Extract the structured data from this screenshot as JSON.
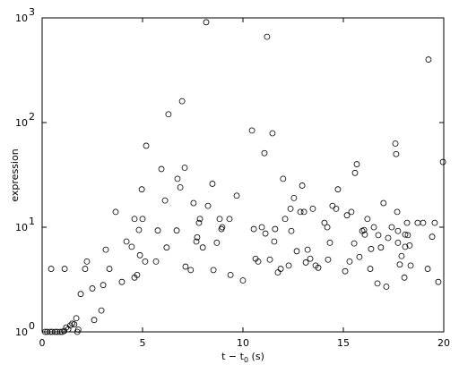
{
  "chart_data": {
    "type": "scatter",
    "x_label": {
      "text": "t − t",
      "sub": "0",
      "suffix": " (s)"
    },
    "y_label": "expression",
    "log_y": true,
    "color": "#000000",
    "xlim": [
      0,
      20
    ],
    "xticks": [
      0,
      5,
      10,
      15,
      20
    ],
    "ylim": [
      1,
      1000
    ],
    "yticks": [
      {
        "value": 1,
        "label": "10",
        "sup": "0"
      },
      {
        "value": 10,
        "label": "10",
        "sup": "1"
      },
      {
        "value": 100,
        "label": "10",
        "sup": "2"
      },
      {
        "value": 1000,
        "label": "10",
        "sup": "3"
      }
    ],
    "x": [
      0.45,
      1.12,
      0.15,
      0.25,
      0.4,
      0.5,
      0.65,
      0.75,
      0.9,
      1.0,
      1.1,
      1.2,
      1.3,
      1.4,
      1.5,
      1.6,
      1.7,
      1.8,
      1.75,
      1.92,
      2.14,
      2.23,
      2.5,
      2.59,
      2.95,
      3.04,
      3.17,
      3.35,
      3.66,
      3.97,
      4.2,
      4.46,
      4.6,
      4.6,
      4.73,
      4.82,
      4.87,
      5.0,
      4.96,
      5.13,
      5.18,
      5.67,
      5.76,
      5.94,
      6.12,
      6.2,
      6.29,
      6.7,
      6.74,
      6.88,
      6.97,
      7.1,
      7.14,
      7.4,
      7.54,
      7.68,
      7.72,
      7.81,
      7.86,
      8.0,
      8.17,
      8.26,
      8.48,
      8.53,
      8.7,
      8.84,
      8.93,
      8.97,
      9.33,
      9.38,
      9.69,
      10.0,
      10.45,
      10.54,
      10.63,
      10.76,
      10.94,
      11.07,
      11.12,
      11.2,
      11.34,
      11.47,
      11.56,
      11.6,
      11.74,
      11.88,
      12.0,
      12.1,
      12.28,
      12.37,
      12.41,
      12.54,
      12.68,
      12.86,
      12.95,
      13.04,
      13.13,
      13.22,
      13.35,
      13.48,
      13.62,
      13.75,
      14.06,
      14.2,
      14.24,
      14.33,
      14.46,
      14.64,
      14.73,
      15.09,
      15.18,
      15.31,
      15.4,
      15.54,
      15.58,
      15.67,
      15.8,
      15.94,
      16.03,
      16.07,
      16.2,
      16.34,
      16.38,
      16.52,
      16.7,
      16.74,
      16.87,
      17.0,
      17.14,
      17.23,
      17.41,
      17.59,
      17.63,
      17.68,
      17.72,
      17.72,
      17.81,
      17.9,
      18.08,
      18.04,
      18.08,
      18.17,
      18.21,
      18.3,
      18.35,
      18.7,
      18.97,
      19.2,
      19.24,
      19.42,
      19.55,
      19.73,
      19.96
    ],
    "values": [
      4.0,
      4.0,
      1.0,
      1.0,
      1.0,
      1.0,
      1.0,
      1.0,
      1.0,
      1.0,
      1.02,
      1.1,
      1.06,
      1.15,
      1.2,
      1.18,
      1.35,
      1.05,
      1.0,
      2.3,
      4.0,
      4.7,
      2.6,
      1.3,
      1.6,
      2.8,
      6.1,
      4.0,
      14,
      3.0,
      7.3,
      6.5,
      12,
      3.3,
      3.5,
      9.4,
      5.4,
      12,
      23,
      4.7,
      60,
      4.7,
      9.3,
      36,
      18,
      6.4,
      120,
      9.3,
      29,
      24,
      160,
      37,
      4.2,
      3.9,
      17,
      7.3,
      8.0,
      11,
      12,
      6.4,
      910,
      16,
      26,
      3.9,
      7.1,
      12,
      9.6,
      10,
      12,
      3.5,
      20,
      3.1,
      84,
      9.6,
      5.0,
      4.7,
      10,
      51,
      8.7,
      660,
      4.9,
      79,
      7.3,
      9.6,
      3.7,
      4.0,
      29,
      12,
      4.3,
      15,
      9.2,
      19,
      5.9,
      14,
      25,
      14,
      4.6,
      6.1,
      5.0,
      15,
      4.3,
      4.1,
      11,
      10,
      4.9,
      7.1,
      16,
      15,
      23,
      3.8,
      13,
      4.7,
      14,
      7.0,
      33,
      40,
      5.2,
      9.2,
      9.4,
      8.5,
      12,
      4.0,
      6.2,
      10,
      2.9,
      8.4,
      6.4,
      17,
      2.7,
      7.9,
      10,
      63,
      50,
      14,
      9.2,
      7.1,
      4.4,
      5.3,
      8.5,
      3.3,
      6.5,
      11,
      8.4,
      6.7,
      4.3,
      11,
      11,
      4.0,
      400,
      8.1,
      11,
      3.0,
      42
    ]
  }
}
